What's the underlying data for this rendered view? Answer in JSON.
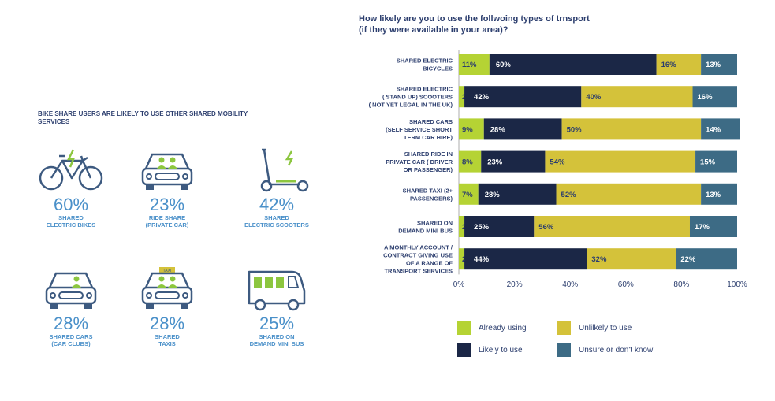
{
  "left_panel": {
    "title": "BIKE SHARE USERS ARE LIKELY TO USE OTHER SHARED MOBILITY SERVICES",
    "stats": [
      {
        "pct": "60%",
        "label1": "SHARED",
        "label2": "ELECTRIC BIKES",
        "icon": "electric-bike-icon"
      },
      {
        "pct": "23%",
        "label1": "RIDE SHARE",
        "label2": "(PRIVATE CAR)",
        "icon": "ride-share-car-icon"
      },
      {
        "pct": "42%",
        "label1": "SHARED",
        "label2": "ELECTRIC SCOOTERS",
        "icon": "electric-scooter-icon"
      },
      {
        "pct": "28%",
        "label1": "SHARED CARS",
        "label2": "(CAR CLUBS)",
        "icon": "car-club-icon"
      },
      {
        "pct": "28%",
        "label1": "SHARED",
        "label2": "TAXIS",
        "icon": "taxi-icon"
      },
      {
        "pct": "25%",
        "label1": "SHARED ON",
        "label2": "DEMAND MINI BUS",
        "icon": "minibus-icon"
      }
    ],
    "taxi_sign": "TAXI",
    "accent": "#4a90c9",
    "icon_color": "#3d5a80",
    "icon_accent": "#8cc63f"
  },
  "chart_data": {
    "type": "bar",
    "orientation": "horizontal-stacked-percent",
    "title_line1": "How likely are you to use the follwoing types of trnsport",
    "title_line2": "(if they were available in your area)?",
    "categories": [
      [
        "SHARED ELECTRIC",
        "BICYCLES"
      ],
      [
        "SHARED ELECTRIC",
        "( STAND UP) SCOOTERS",
        "( NOT YET LEGAL IN THE UK)"
      ],
      [
        "SHARED CARS",
        "(SELF SERVICE SHORT",
        "TERM CAR HIRE)"
      ],
      [
        "SHARED RIDE IN",
        "PRIVATE CAR ( DRIVER",
        "OR PASSENGER)"
      ],
      [
        "SHARED TAXI (2+",
        "PASSENGERS)"
      ],
      [
        "SHARED ON",
        "DEMAND MINI BUS"
      ],
      [
        "A MONTHLY ACCOUNT /",
        "CONTRACT GIVING USE",
        "OF A RANGE OF",
        "TRANSPORT SERVICES"
      ]
    ],
    "series": [
      {
        "name": "Already using",
        "color": "#b5d334",
        "values": [
          11,
          2,
          9,
          8,
          7,
          2,
          2
        ]
      },
      {
        "name": "Likely to use",
        "color": "#1b2746",
        "values": [
          60,
          42,
          28,
          23,
          28,
          25,
          44
        ]
      },
      {
        "name": "Unlilkely to use",
        "color": "#d4c23a",
        "values": [
          16,
          40,
          50,
          54,
          52,
          56,
          32
        ]
      },
      {
        "name": "Unsure or don't know",
        "color": "#3d6b85",
        "values": [
          13,
          16,
          14,
          15,
          13,
          17,
          22
        ]
      }
    ],
    "xlim": [
      0,
      100
    ],
    "xticks": [
      "0%",
      "20%",
      "40%",
      "60%",
      "80%",
      "100%"
    ],
    "legend_position": "bottom",
    "grid": false
  }
}
